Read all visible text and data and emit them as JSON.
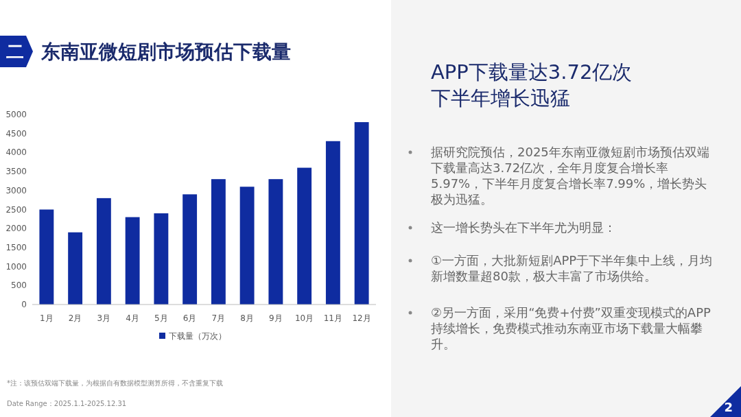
{
  "chart_data": {
    "type": "bar",
    "title": "东南亚微短剧市场预估下载量",
    "categories": [
      "1月",
      "2月",
      "3月",
      "4月",
      "5月",
      "6月",
      "7月",
      "8月",
      "9月",
      "10月",
      "11月",
      "12月"
    ],
    "series": [
      {
        "name": "下载量（万次）",
        "color": "#0f2ca0",
        "values": [
          2500,
          1900,
          2800,
          2300,
          2400,
          2900,
          3300,
          3100,
          3300,
          3600,
          4300,
          4800
        ]
      }
    ],
    "ylim": [
      0,
      5000
    ],
    "yticks": [
      0,
      500,
      1000,
      1500,
      2000,
      2500,
      3000,
      3500,
      4000,
      4500,
      5000
    ],
    "grid": false,
    "legend": "bottom",
    "annotations": [
      "二",
      "APP下载量达3.72亿次",
      "下半年增长迅猛",
      "据研究院预估，2025年东南亚微短剧市场预估双端下载量高达3.72亿次，全年月度复合增长率5.97%，下半年月度复合增长率7.99%，增长势头极为迅猛。",
      "这一增长势头在下半年尤为明显：",
      "①一方面，大批新短剧APP于下半年集中上线，月均新增数量超80款，极大丰富了市场供给。",
      "②另一方面，采用“免费+付费”双重变现模式的APP持续增长，免费模式推动东南亚市场下载量大幅攀升。",
      "*注：该预估双端下载量，为根据自有数据模型测算所得，不含重复下载",
      "Date Range：2025.1.1-2025.12.31",
      "2"
    ]
  }
}
